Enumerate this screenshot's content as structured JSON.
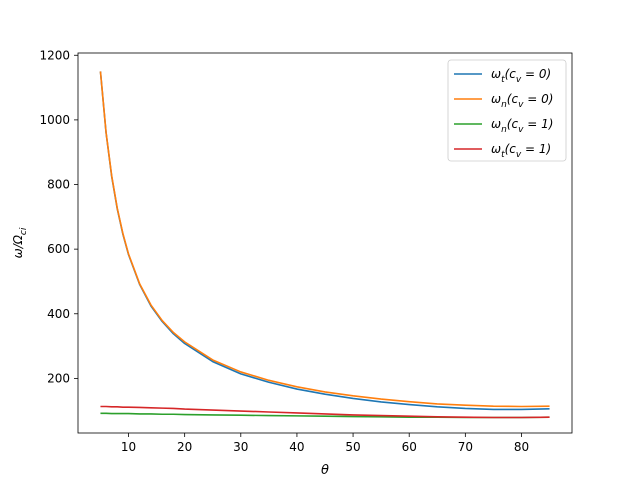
{
  "chart_data": {
    "type": "line",
    "title": "",
    "xlabel": "θ",
    "ylabel": "ω/Ω_ci",
    "xlim": [
      1.0,
      89.0
    ],
    "ylim": [
      31.0,
      1207.0
    ],
    "xticks": [
      10,
      20,
      30,
      40,
      50,
      60,
      70,
      80
    ],
    "yticks": [
      200,
      400,
      600,
      800,
      1000,
      1200
    ],
    "grid": false,
    "legend_position": "upper right",
    "x": [
      5,
      6,
      7,
      8,
      9,
      10,
      12,
      14,
      16,
      18,
      20,
      25,
      30,
      35,
      40,
      45,
      50,
      55,
      60,
      65,
      70,
      75,
      80,
      85
    ],
    "series": [
      {
        "name": "ω_t(c_v = 0)",
        "color": "#1f77b4",
        "values": [
          1150,
          960,
          825,
          724,
          646,
          583,
          490,
          424,
          376,
          338,
          308,
          252,
          214,
          188,
          167,
          151,
          138,
          127,
          119,
          112,
          107,
          104,
          104,
          106
        ]
      },
      {
        "name": "ω_n(c_v = 0)",
        "color": "#ff7f0e",
        "values": [
          1150,
          961,
          827,
          726,
          648,
          585,
          492,
          427,
          379,
          342,
          313,
          257,
          220,
          194,
          174,
          158,
          146,
          136,
          128,
          121,
          117,
          114,
          113,
          114
        ]
      },
      {
        "name": "ω_n(c_v = 1)",
        "color": "#2ca02c",
        "values": [
          92,
          92,
          91,
          91,
          91,
          91,
          90,
          90,
          89,
          89,
          88,
          87,
          86,
          85,
          84,
          83,
          82,
          81,
          80,
          80,
          79,
          79,
          79,
          80
        ]
      },
      {
        "name": "ω_t(c_v = 1)",
        "color": "#d62728",
        "values": [
          113,
          113,
          112,
          112,
          111,
          111,
          110,
          109,
          108,
          107,
          105,
          102,
          99,
          96,
          93,
          90,
          87,
          85,
          83,
          81,
          80,
          79,
          79,
          80
        ]
      }
    ]
  }
}
